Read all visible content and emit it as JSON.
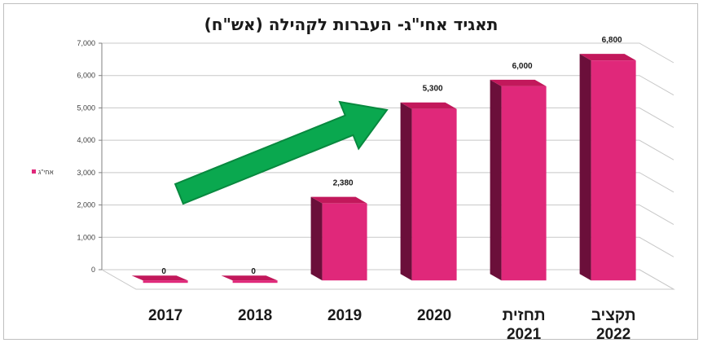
{
  "chart_data": {
    "type": "bar",
    "title": "תאגיד אחי\"ג- העברות לקהילה (אש\"ח)",
    "categories": [
      [
        "2017"
      ],
      [
        "2018"
      ],
      [
        "2019"
      ],
      [
        "2020"
      ],
      [
        "תחזית",
        "2021"
      ],
      [
        "תקציב",
        "2022"
      ]
    ],
    "series": [
      {
        "name": "אחי\"ג",
        "values": [
          0,
          0,
          2380,
          5300,
          6000,
          6800
        ],
        "data_labels": [
          "0",
          "0",
          "2,380",
          "5,300",
          "6,000",
          "6,800"
        ]
      }
    ],
    "ylim": [
      0,
      7000
    ],
    "yticks": [
      "0",
      "1,000",
      "2,000",
      "3,000",
      "4,000",
      "5,000",
      "6,000",
      "7,000"
    ],
    "legend_position": "left",
    "grid": true,
    "style": "3d",
    "annotations": [
      {
        "type": "arrow",
        "direction": "up-right",
        "color": "#0aa84f"
      }
    ],
    "colors": {
      "bar_front": "#e0287a",
      "bar_side": "#6b0f3a",
      "bar_top": "#c2185b",
      "grid": "#c8c8c8",
      "arrow": "#0aa84f",
      "arrow_border": "#08893f"
    }
  }
}
